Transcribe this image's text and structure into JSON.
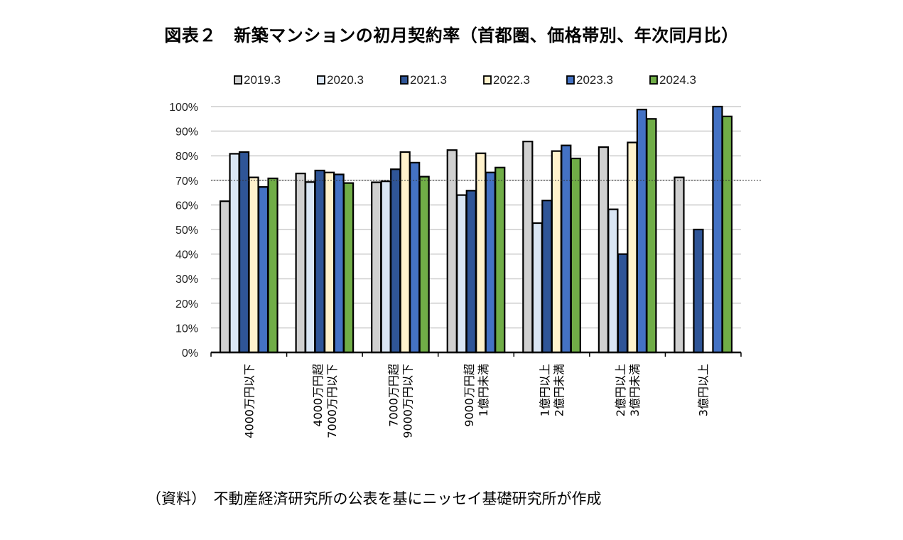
{
  "title": "図表２　新築マンションの初月契約率（首都圏、価格帯別、年次同月比）",
  "source": "（資料）　不動産経済研究所の公表を基にニッセイ基礎研究所が作成",
  "chart_data": {
    "type": "bar",
    "title": "図表２　新築マンションの初月契約率（首都圏、価格帯別、年次同月比）",
    "xlabel": "",
    "ylabel": "",
    "ylim": [
      0,
      100
    ],
    "yticks": [
      "0%",
      "10%",
      "20%",
      "30%",
      "40%",
      "50%",
      "60%",
      "70%",
      "80%",
      "90%",
      "100%"
    ],
    "grid": true,
    "reference_line": 70,
    "legend_position": "top",
    "categories": [
      [
        "4000万円以下"
      ],
      [
        "4000万円超",
        "7000万円以下"
      ],
      [
        "7000万円超",
        "9000万円以下"
      ],
      [
        "9000万円超",
        "1億円未満"
      ],
      [
        "1億円以上",
        "2億円未満"
      ],
      [
        "2億円以上",
        "3億円未満"
      ],
      [
        "3億円以上"
      ]
    ],
    "series": [
      {
        "name": "2019.3",
        "color": "#d0d0d0",
        "values": [
          61.5,
          72.8,
          69.2,
          82.3,
          85.8,
          83.5,
          71.2
        ]
      },
      {
        "name": "2020.3",
        "color": "#dae6f4",
        "values": [
          80.8,
          69.3,
          69.6,
          64.0,
          52.6,
          58.2,
          null
        ]
      },
      {
        "name": "2021.3",
        "color": "#2f5597",
        "values": [
          81.5,
          74.0,
          74.5,
          65.8,
          61.8,
          40.0,
          50.0
        ]
      },
      {
        "name": "2022.3",
        "color": "#fff2cc",
        "values": [
          71.2,
          73.2,
          81.5,
          81.0,
          81.9,
          85.4,
          null
        ]
      },
      {
        "name": "2023.3",
        "color": "#4472c4",
        "values": [
          67.3,
          72.4,
          77.2,
          73.2,
          84.2,
          98.8,
          100.0
        ]
      },
      {
        "name": "2024.3",
        "color": "#70ad47",
        "values": [
          70.8,
          68.9,
          71.5,
          75.2,
          78.9,
          95.0,
          96.0
        ]
      }
    ]
  }
}
